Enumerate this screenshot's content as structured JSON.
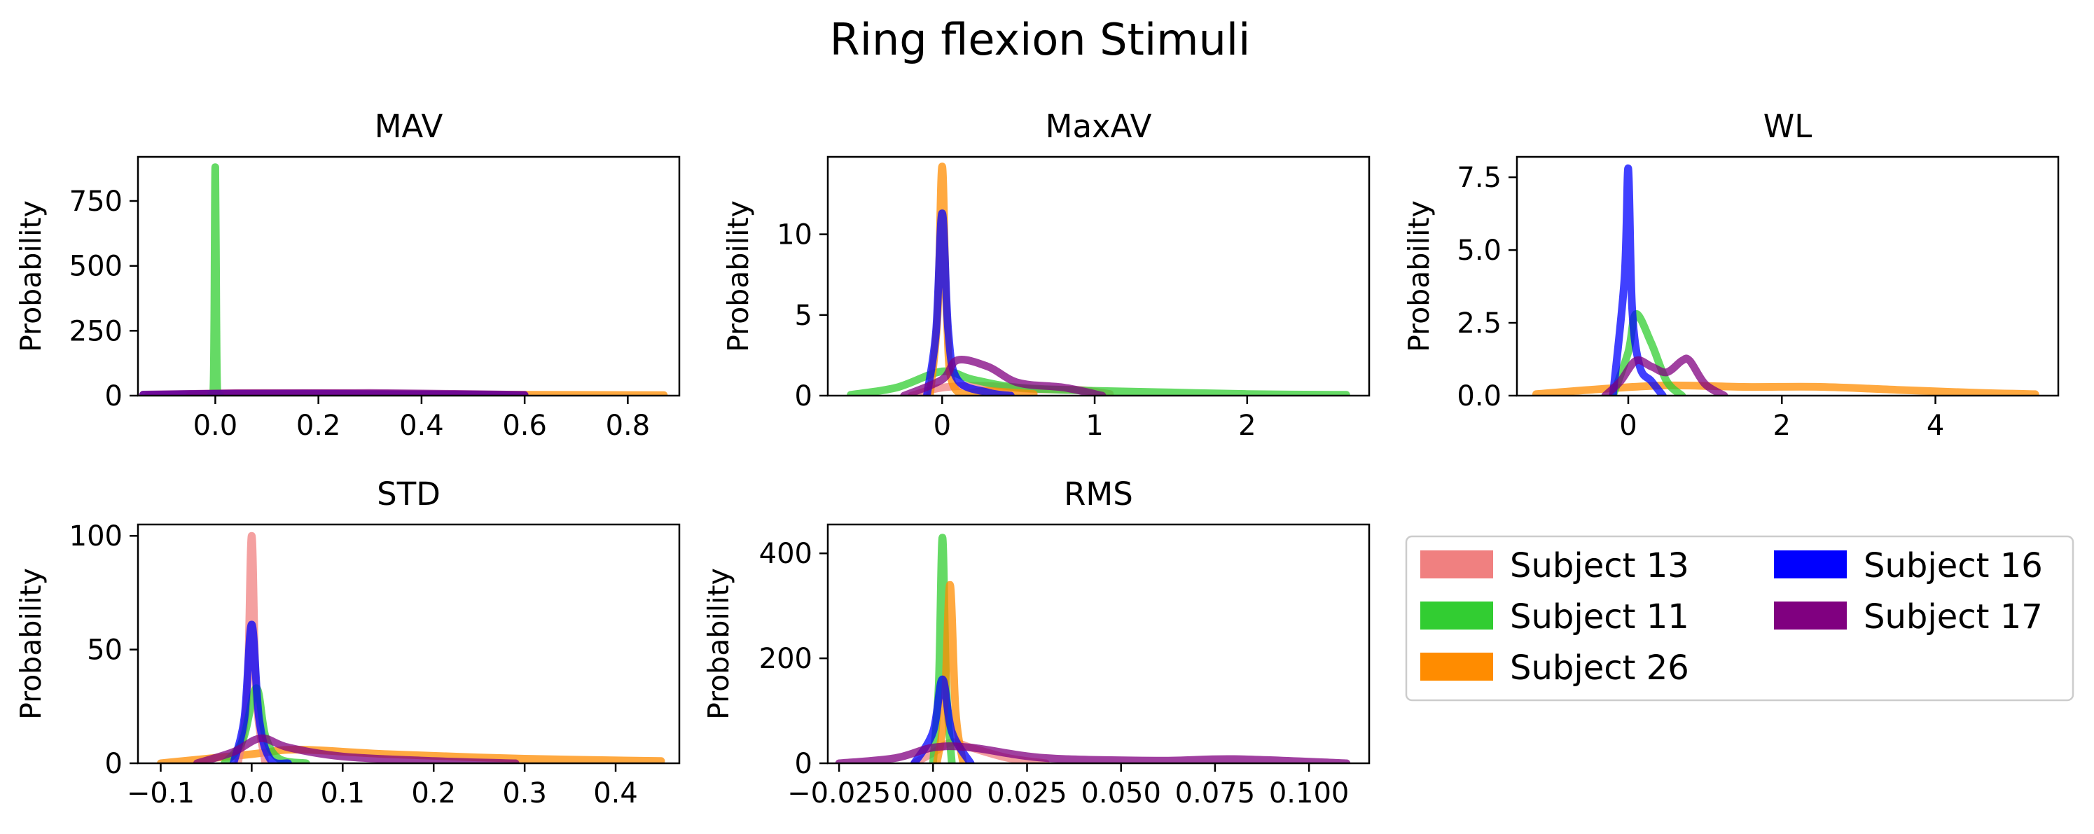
{
  "figure": {
    "title": "Ring flexion Stimuli"
  },
  "colors": {
    "Subject 13": "#f08080",
    "Subject 11": "#32cd32",
    "Subject 26": "#ff8c00",
    "Subject 16": "#0000ff",
    "Subject 17": "#800080"
  },
  "legend": {
    "placement": "lower-right",
    "entries": [
      "Subject 13",
      "Subject 11",
      "Subject 26",
      "Subject 16",
      "Subject 17"
    ]
  },
  "chart_data": [
    {
      "type": "line",
      "title": "MAV",
      "ylabel": "Probability",
      "xlim": [
        -0.15,
        0.9
      ],
      "ylim": [
        0,
        920
      ],
      "xticks": [
        {
          "v": 0.0,
          "label": "0.0"
        },
        {
          "v": 0.2,
          "label": "0.2"
        },
        {
          "v": 0.4,
          "label": "0.4"
        },
        {
          "v": 0.6,
          "label": "0.6"
        },
        {
          "v": 0.8,
          "label": "0.8"
        }
      ],
      "yticks": [
        {
          "v": 0,
          "label": "0"
        },
        {
          "v": 250,
          "label": "250"
        },
        {
          "v": 500,
          "label": "500"
        },
        {
          "v": 750,
          "label": "750"
        }
      ],
      "series": [
        {
          "name": "Subject 13",
          "x": [
            -0.13,
            0.0,
            0.1,
            0.3,
            0.5,
            0.6
          ],
          "y": [
            0,
            8,
            10,
            7,
            4,
            1
          ]
        },
        {
          "name": "Subject 26",
          "x": [
            -0.05,
            0.1,
            0.3,
            0.5,
            0.7,
            0.87
          ],
          "y": [
            0,
            2,
            4,
            4,
            3,
            2
          ]
        },
        {
          "name": "Subject 11",
          "x": [
            -0.01,
            -0.004,
            -0.002,
            0.0,
            0.002,
            0.004,
            0.01
          ],
          "y": [
            0,
            10,
            300,
            880,
            300,
            10,
            0
          ]
        },
        {
          "name": "Subject 16",
          "x": [
            -0.14,
            0.0,
            0.1,
            0.3,
            0.5,
            0.6
          ],
          "y": [
            3,
            7,
            8,
            6,
            4,
            2
          ]
        },
        {
          "name": "Subject 17",
          "x": [
            -0.14,
            0.0,
            0.1,
            0.3,
            0.45,
            0.6
          ],
          "y": [
            4,
            8,
            9,
            10,
            7,
            3
          ]
        }
      ]
    },
    {
      "type": "line",
      "title": "MaxAV",
      "ylabel": "Probability",
      "xlim": [
        -0.75,
        2.8
      ],
      "ylim": [
        0,
        14.8
      ],
      "xticks": [
        {
          "v": 0,
          "label": "0"
        },
        {
          "v": 1,
          "label": "1"
        },
        {
          "v": 2,
          "label": "2"
        }
      ],
      "yticks": [
        {
          "v": 0,
          "label": "0"
        },
        {
          "v": 5,
          "label": "5"
        },
        {
          "v": 10,
          "label": "10"
        }
      ],
      "series": [
        {
          "name": "Subject 13",
          "x": [
            -0.2,
            0.0,
            0.3,
            0.6,
            0.9,
            1.1
          ],
          "y": [
            0,
            0.5,
            0.6,
            0.4,
            0.35,
            0.1
          ]
        },
        {
          "name": "Subject 11",
          "x": [
            -0.6,
            -0.3,
            0.0,
            0.2,
            0.5,
            1.0,
            1.5,
            2.0,
            2.65
          ],
          "y": [
            0.05,
            0.5,
            1.5,
            1.0,
            0.5,
            0.3,
            0.2,
            0.1,
            0.05
          ]
        },
        {
          "name": "Subject 26",
          "x": [
            -0.08,
            -0.03,
            0.0,
            0.03,
            0.08,
            0.3,
            0.6
          ],
          "y": [
            0,
            5,
            14.2,
            5,
            0.5,
            0.3,
            0.1
          ]
        },
        {
          "name": "Subject 16",
          "x": [
            -0.1,
            -0.04,
            0.0,
            0.04,
            0.1,
            0.3,
            0.45
          ],
          "y": [
            0,
            4,
            11.3,
            4,
            1,
            0.2,
            0
          ]
        },
        {
          "name": "Subject 17",
          "x": [
            -0.25,
            0.0,
            0.1,
            0.3,
            0.5,
            0.8,
            1.05
          ],
          "y": [
            0,
            1.0,
            2.2,
            1.8,
            0.8,
            0.5,
            0
          ]
        }
      ]
    },
    {
      "type": "line",
      "title": "WL",
      "ylabel": "Probability",
      "xlim": [
        -1.45,
        5.6
      ],
      "ylim": [
        0,
        8.2
      ],
      "xticks": [
        {
          "v": 0,
          "label": "0"
        },
        {
          "v": 2,
          "label": "2"
        },
        {
          "v": 4,
          "label": "4"
        }
      ],
      "yticks": [
        {
          "v": 0.0,
          "label": "0.0"
        },
        {
          "v": 2.5,
          "label": "2.5"
        },
        {
          "v": 5.0,
          "label": "5.0"
        },
        {
          "v": 7.5,
          "label": "7.5"
        }
      ],
      "series": [
        {
          "name": "Subject 26",
          "x": [
            -1.2,
            -0.5,
            0.5,
            1.5,
            2.5,
            3.5,
            4.5,
            5.3
          ],
          "y": [
            0.05,
            0.2,
            0.35,
            0.3,
            0.3,
            0.2,
            0.1,
            0.05
          ]
        },
        {
          "name": "Subject 11",
          "x": [
            -0.2,
            0.0,
            0.1,
            0.3,
            0.5,
            0.7
          ],
          "y": [
            0,
            1.5,
            2.8,
            1.8,
            0.5,
            0
          ]
        },
        {
          "name": "Subject 16",
          "x": [
            -0.2,
            -0.05,
            0.0,
            0.05,
            0.15,
            0.3,
            0.45
          ],
          "y": [
            0,
            4,
            7.8,
            3,
            1,
            0.5,
            0
          ]
        },
        {
          "name": "Subject 17",
          "x": [
            -0.3,
            -0.1,
            0.1,
            0.3,
            0.5,
            0.7,
            0.8,
            1.0,
            1.25
          ],
          "y": [
            0,
            0.5,
            1.2,
            1.0,
            0.8,
            1.2,
            1.2,
            0.4,
            0
          ]
        }
      ]
    },
    {
      "type": "line",
      "title": "STD",
      "ylabel": "Probability",
      "xlim": [
        -0.125,
        0.47
      ],
      "ylim": [
        0,
        105
      ],
      "xticks": [
        {
          "v": -0.1,
          "label": "−0.1"
        },
        {
          "v": 0.0,
          "label": "0.0"
        },
        {
          "v": 0.1,
          "label": "0.1"
        },
        {
          "v": 0.2,
          "label": "0.2"
        },
        {
          "v": 0.3,
          "label": "0.3"
        },
        {
          "v": 0.4,
          "label": "0.4"
        }
      ],
      "yticks": [
        {
          "v": 0,
          "label": "0"
        },
        {
          "v": 50,
          "label": "50"
        },
        {
          "v": 100,
          "label": "100"
        }
      ],
      "series": [
        {
          "name": "Subject 26",
          "x": [
            -0.1,
            0.0,
            0.05,
            0.15,
            0.3,
            0.45
          ],
          "y": [
            0,
            4,
            6,
            4,
            2,
            1
          ]
        },
        {
          "name": "Subject 13",
          "x": [
            -0.015,
            -0.005,
            0.0,
            0.005,
            0.015
          ],
          "y": [
            0,
            30,
            100,
            30,
            0
          ]
        },
        {
          "name": "Subject 11",
          "x": [
            -0.03,
            -0.01,
            0.005,
            0.015,
            0.03,
            0.06
          ],
          "y": [
            0,
            10,
            33,
            12,
            2,
            0
          ]
        },
        {
          "name": "Subject 16",
          "x": [
            -0.02,
            -0.008,
            0.0,
            0.008,
            0.02,
            0.04
          ],
          "y": [
            0,
            20,
            61,
            20,
            2,
            0
          ]
        },
        {
          "name": "Subject 17",
          "x": [
            -0.06,
            -0.02,
            0.01,
            0.04,
            0.1,
            0.2,
            0.29
          ],
          "y": [
            0,
            5,
            11,
            7,
            3,
            1,
            0
          ]
        }
      ]
    },
    {
      "type": "line",
      "title": "RMS",
      "ylabel": "Probability",
      "xlim": [
        -0.028,
        0.116
      ],
      "ylim": [
        0,
        455
      ],
      "xticks": [
        {
          "v": -0.025,
          "label": "−0.025"
        },
        {
          "v": 0.0,
          "label": "0.000"
        },
        {
          "v": 0.025,
          "label": "0.025"
        },
        {
          "v": 0.05,
          "label": "0.050"
        },
        {
          "v": 0.075,
          "label": "0.075"
        },
        {
          "v": 0.1,
          "label": "0.100"
        }
      ],
      "yticks": [
        {
          "v": 0,
          "label": "0"
        },
        {
          "v": 200,
          "label": "200"
        },
        {
          "v": 400,
          "label": "400"
        }
      ],
      "series": [
        {
          "name": "Subject 13",
          "x": [
            -0.005,
            0.0,
            0.005,
            0.01,
            0.02,
            0.03
          ],
          "y": [
            0,
            20,
            40,
            30,
            10,
            0
          ]
        },
        {
          "name": "Subject 11",
          "x": [
            0.0,
            0.0015,
            0.0025,
            0.0035,
            0.005
          ],
          "y": [
            0,
            150,
            430,
            150,
            0
          ]
        },
        {
          "name": "Subject 26",
          "x": [
            0.001,
            0.003,
            0.0045,
            0.006,
            0.008
          ],
          "y": [
            0,
            100,
            340,
            100,
            0
          ]
        },
        {
          "name": "Subject 16",
          "x": [
            -0.005,
            0.0,
            0.0025,
            0.005,
            0.01
          ],
          "y": [
            0,
            60,
            160,
            60,
            0
          ]
        },
        {
          "name": "Subject 17",
          "x": [
            -0.025,
            -0.01,
            0.0,
            0.01,
            0.03,
            0.06,
            0.08,
            0.11
          ],
          "y": [
            0,
            10,
            30,
            30,
            10,
            5,
            8,
            0
          ]
        }
      ]
    }
  ]
}
